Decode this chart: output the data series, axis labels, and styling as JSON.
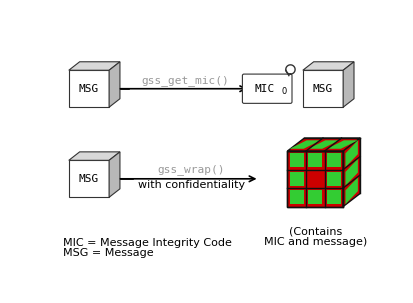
{
  "bg_color": "#ffffff",
  "box_facecolor": "#ffffff",
  "box_edgecolor": "#333333",
  "box_top_color": "#d8d8d8",
  "box_right_color": "#b8b8b8",
  "green_color": "#33cc33",
  "red_color": "#cc0000",
  "arrow_color": "#000000",
  "func_color": "#999999",
  "text_color": "#000000",
  "func1_text": "gss_get_mic()",
  "func2_line1": "gss_wrap()",
  "func2_line2": "with confidentiality",
  "legend_line1": "MIC = Message Integrity Code",
  "legend_line2": "MSG = Message",
  "contains_line1": "(Contains",
  "contains_line2": "MIC and message)"
}
